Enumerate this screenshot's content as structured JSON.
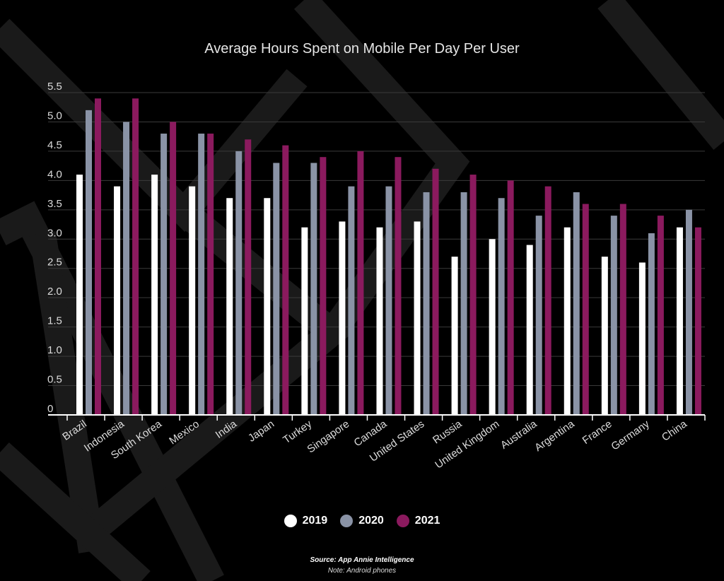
{
  "chart_data": {
    "type": "bar",
    "title": "Average Hours Spent on Mobile Per Day Per User",
    "categories": [
      "Brazil",
      "Indonesia",
      "South Korea",
      "Mexico",
      "India",
      "Japan",
      "Turkey",
      "Singapore",
      "Canada",
      "United States",
      "Russia",
      "United Kingdom",
      "Australia",
      "Argentina",
      "France",
      "Germany",
      "China"
    ],
    "series": [
      {
        "name": "2019",
        "color": "#ffffff",
        "values": [
          4.1,
          3.9,
          4.1,
          3.9,
          3.7,
          3.7,
          3.2,
          3.3,
          3.2,
          3.3,
          2.7,
          3.0,
          2.9,
          3.2,
          2.7,
          2.6,
          3.2
        ]
      },
      {
        "name": "2020",
        "color": "#8a93a6",
        "values": [
          5.2,
          5.0,
          4.8,
          4.8,
          4.5,
          4.3,
          4.3,
          3.9,
          3.9,
          3.8,
          3.8,
          3.7,
          3.4,
          3.8,
          3.4,
          3.1,
          3.5
        ]
      },
      {
        "name": "2021",
        "color": "#8b1a5e",
        "values": [
          5.4,
          5.4,
          5.0,
          4.8,
          4.7,
          4.6,
          4.4,
          4.5,
          4.4,
          4.2,
          4.1,
          4.0,
          3.9,
          3.6,
          3.6,
          3.4,
          3.2
        ]
      }
    ],
    "yticks": [
      "0",
      "0.5",
      "1.0",
      "1.5",
      "2.0",
      "2.5",
      "3.0",
      "3.5",
      "4.0",
      "4.5",
      "5.0",
      "5.5"
    ],
    "ylim": [
      0,
      5.5
    ],
    "grid": true,
    "legend": "bottom-center"
  },
  "legend_items": [
    {
      "label": "2019",
      "color": "#ffffff"
    },
    {
      "label": "2020",
      "color": "#8a93a6"
    },
    {
      "label": "2021",
      "color": "#8b1a5e"
    }
  ],
  "source": "Source: App Annie Intelligence",
  "note": "Note: Android phones"
}
